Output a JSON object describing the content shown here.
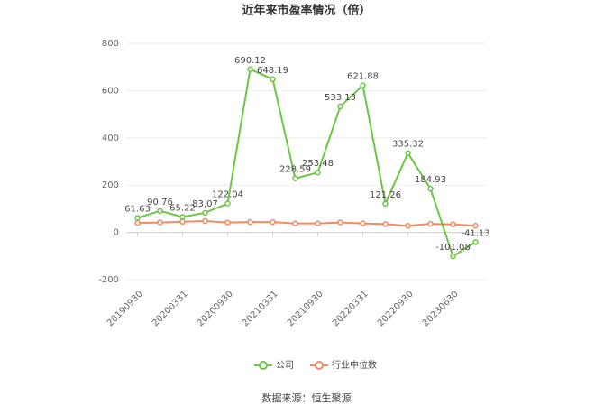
{
  "chart_data": {
    "type": "line",
    "title": "近年来市盈率情况（倍）",
    "categories": [
      "20190930",
      null,
      "20200331",
      null,
      "20200930",
      null,
      "20210331",
      null,
      "20210930",
      null,
      "20220331",
      null,
      "20220930",
      null,
      "20230630",
      null
    ],
    "series": [
      {
        "name": "公司",
        "color": "#6cc644",
        "values": [
          61.63,
          90.76,
          65.22,
          83.07,
          122.04,
          690.12,
          648.19,
          228.59,
          253.48,
          533.13,
          621.88,
          121.26,
          335.32,
          184.93,
          -101.08,
          -41.13
        ]
      },
      {
        "name": "行业中位数",
        "color": "#f08b62",
        "values": [
          40,
          42,
          45,
          48,
          42,
          44,
          44,
          38,
          38,
          42,
          38,
          35,
          28,
          36,
          34,
          28
        ]
      }
    ],
    "ylim": [
      -200,
      800
    ],
    "yticks": [
      -200,
      0,
      200,
      400,
      600,
      800
    ],
    "grid": true,
    "source": "数据来源：恒生聚源"
  }
}
